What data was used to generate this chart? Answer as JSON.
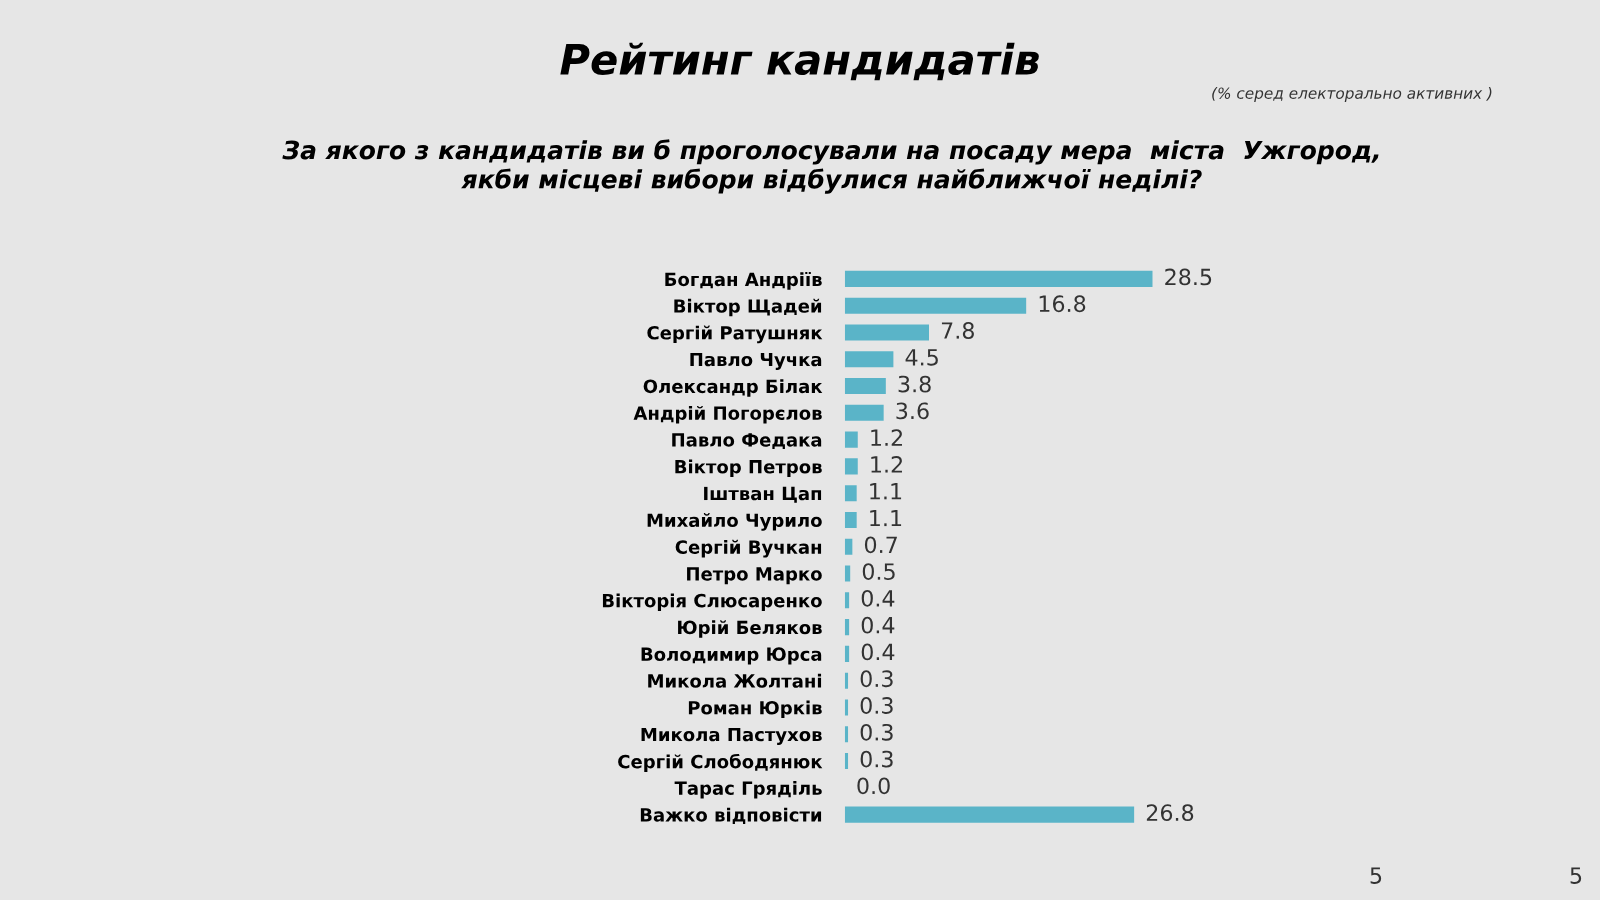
{
  "chart_data": {
    "type": "bar",
    "orientation": "horizontal",
    "title": "Рейтинг кандидатів",
    "subtitle": "За якого з кандидатів ви б проголосували на посаду мера  міста  Ужгород,\nякби місцеві вибори відбулися найближчої неділі?",
    "annotations": [
      "(% серед електорально активних )",
      "5",
      "5"
    ],
    "categories": [
      "Богдан Андріїв",
      "Віктор Щадей",
      "Сергій Ратушняк",
      "Павло Чучка",
      "Олександр Білак",
      "Андрій Погорєлов",
      "Павло Федака",
      "Віктор Петров",
      "Іштван Цап",
      "Михайло Чурило",
      "Сергій Вучкан",
      "Петро Марко",
      "Вікторія Слюсаренко",
      "Юрій Беляков",
      "Володимир Юрса",
      "Микола Жолтані",
      "Роман Юрків",
      "Микола Пастухов",
      "Сергій Слободянюк",
      "Тарас Гряділь",
      "Важко відповісти"
    ],
    "values": [
      28.5,
      16.8,
      7.8,
      4.5,
      3.8,
      3.6,
      1.2,
      1.2,
      1.1,
      1.1,
      0.7,
      0.5,
      0.4,
      0.4,
      0.4,
      0.3,
      0.3,
      0.3,
      0.3,
      0.0,
      26.8
    ],
    "value_labels": [
      "28.5",
      "16.8",
      "7.8",
      "4.5",
      "3.8",
      "3.6",
      "1.2",
      "1.2",
      "1.1",
      "1.1",
      "0.7",
      "0.5",
      "0.4",
      "0.4",
      "0.4",
      "0.3",
      "0.3",
      "0.3",
      "0.3",
      "0.0",
      "26.8"
    ],
    "color": "#5ab4c8",
    "grid": false,
    "legend": false
  }
}
